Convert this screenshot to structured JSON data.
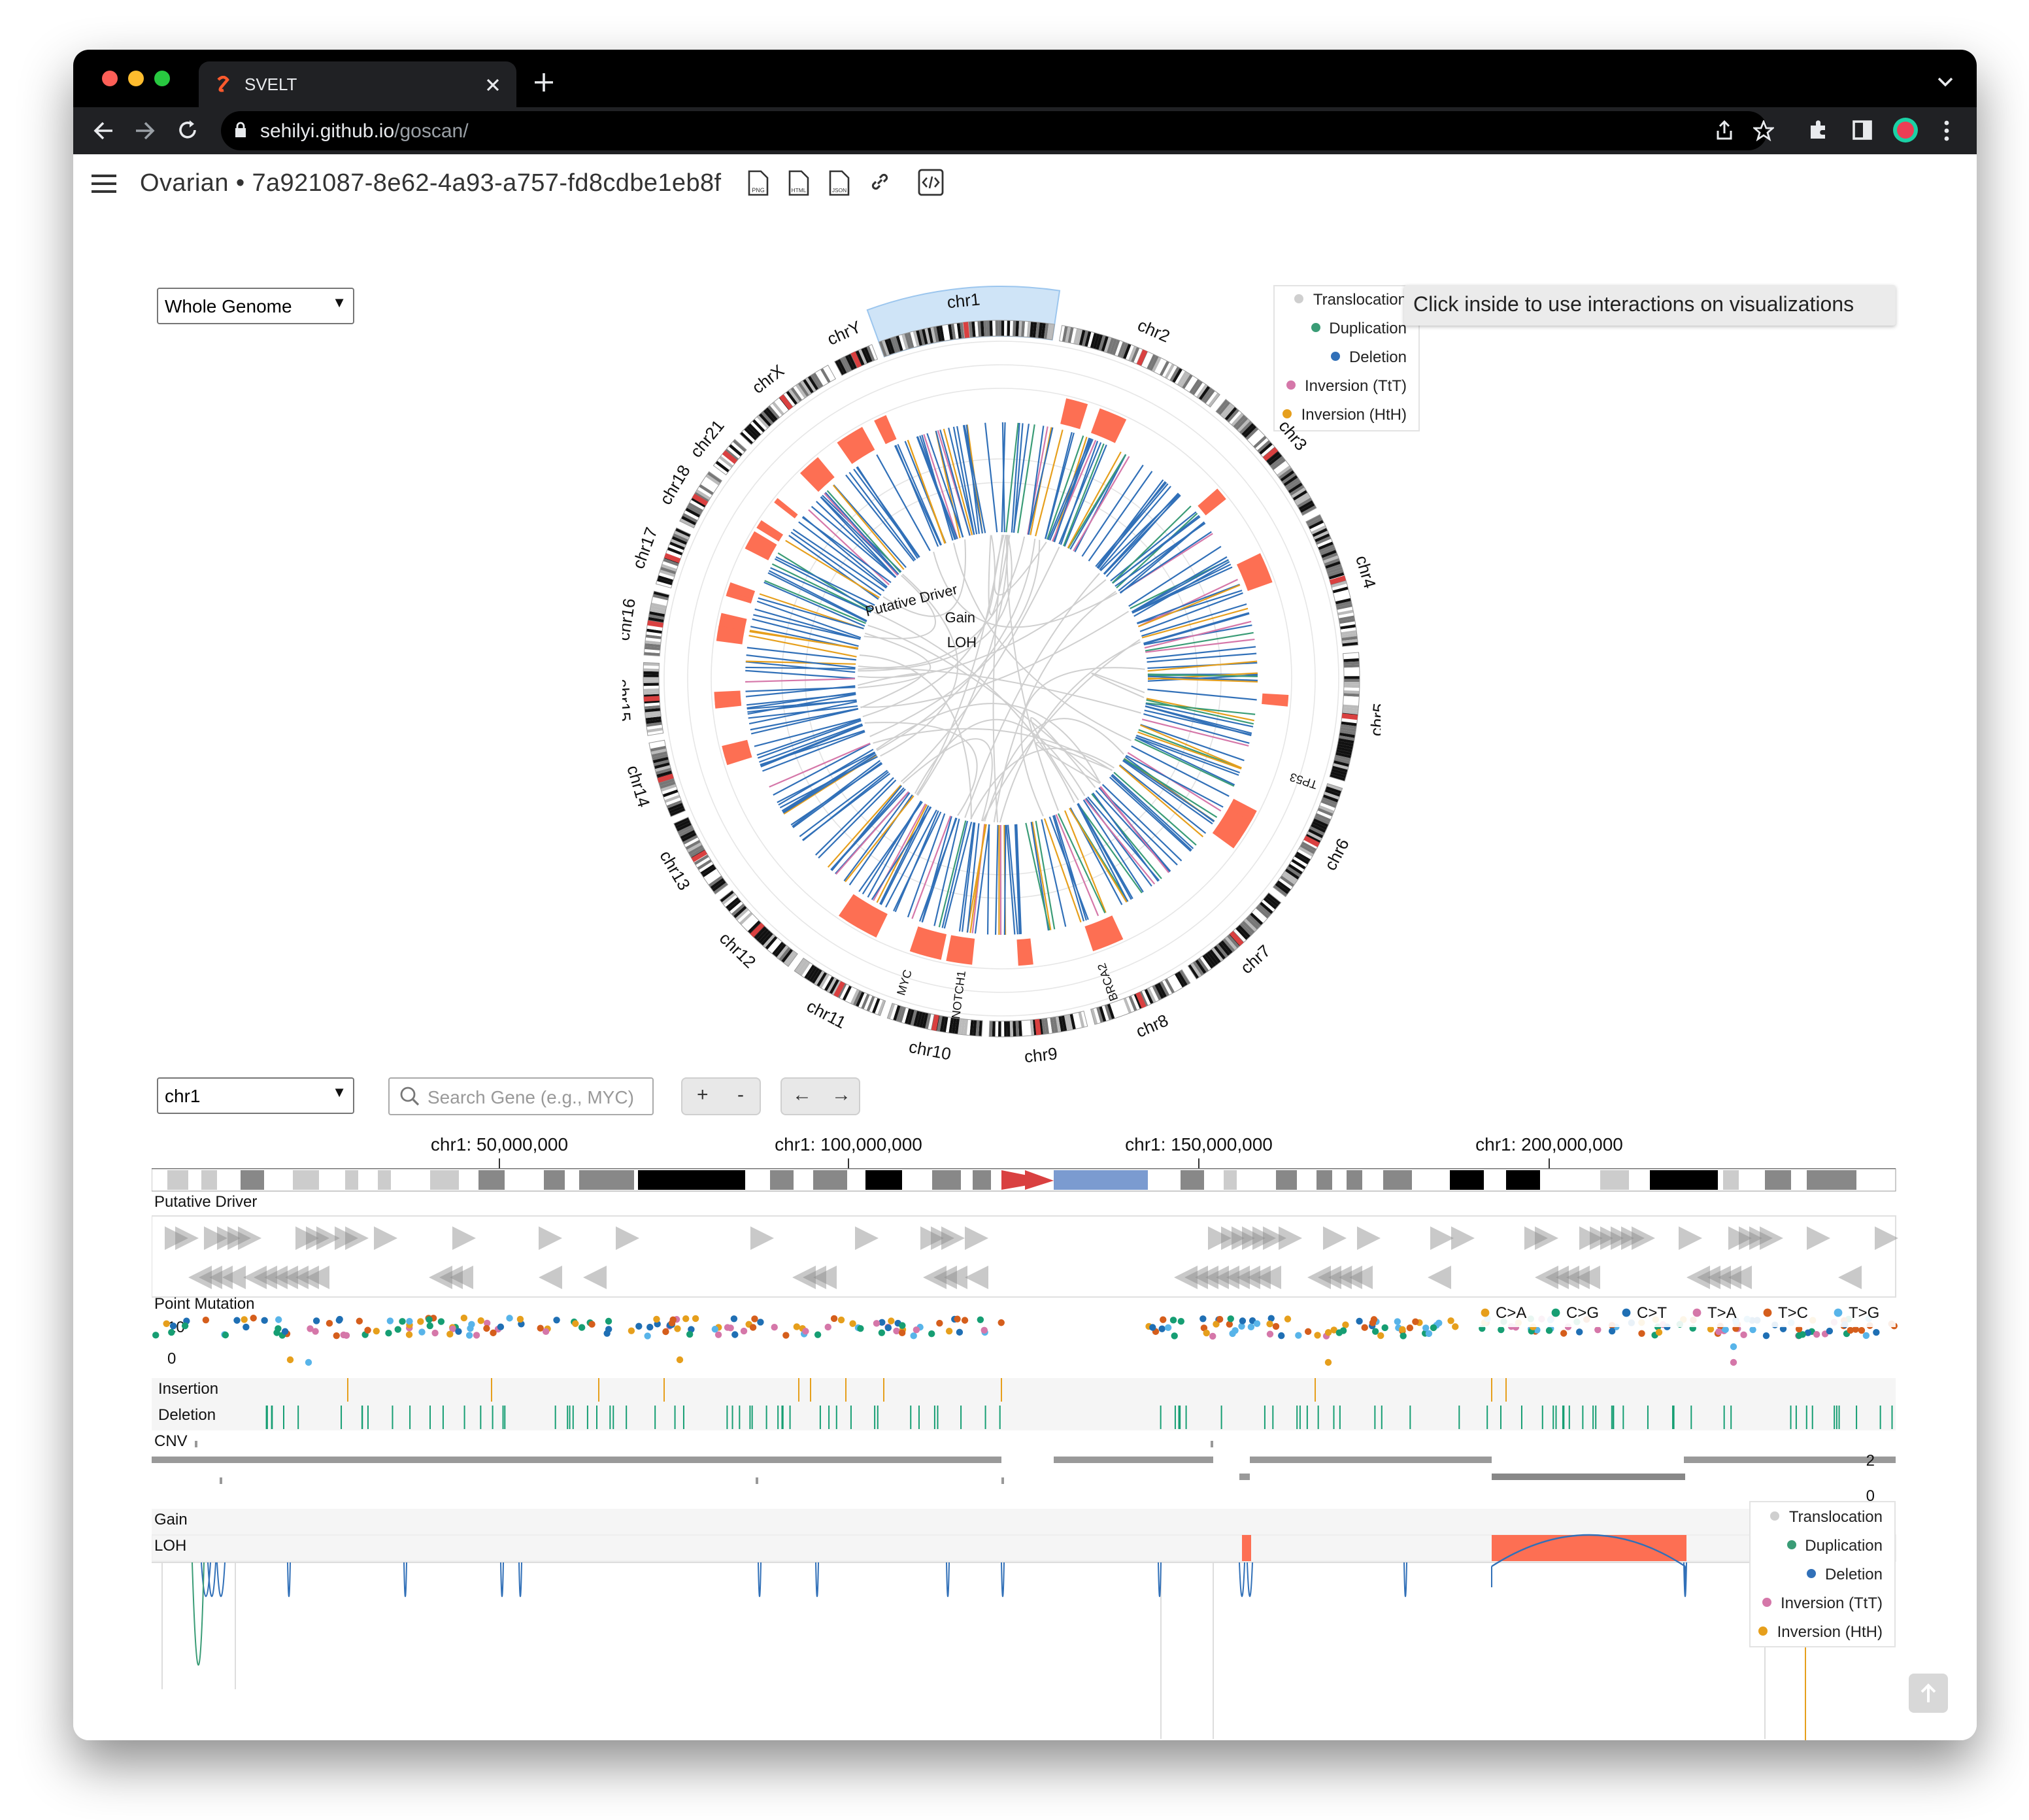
{
  "browser": {
    "tab_title": "SVELT",
    "url_host": "sehilyi.github.io",
    "url_path": "/goscan/"
  },
  "header": {
    "title": "Ovarian • 7a921087-8e62-4a93-a757-fd8cdbe1eb8f",
    "icons": [
      "png-icon",
      "html-icon",
      "json-icon",
      "link-icon",
      "code-embed-icon"
    ]
  },
  "controls": {
    "genome_select": "Whole Genome",
    "chrom_select": "chr1",
    "search_placeholder": "Search Gene (e.g., MYC)",
    "zoom_in": "+",
    "zoom_out": "-",
    "pan_left": "←",
    "pan_right": "→"
  },
  "tooltip": "Click inside to use interactions on visualizations",
  "sv_legend": [
    {
      "label": "Translocation",
      "color": "#cfcfcf"
    },
    {
      "label": "Duplication",
      "color": "#3a9c76"
    },
    {
      "label": "Deletion",
      "color": "#3170b8"
    },
    {
      "label": "Inversion (TtT)",
      "color": "#d577a9"
    },
    {
      "label": "Inversion (HtH)",
      "color": "#e69f1c"
    }
  ],
  "mutation_legend": [
    {
      "label": "C>A",
      "color": "#e69f1c"
    },
    {
      "label": "C>G",
      "color": "#169e73"
    },
    {
      "label": "C>T",
      "color": "#1f6fb4"
    },
    {
      "label": "T>A",
      "color": "#d577a9"
    },
    {
      "label": "T>C",
      "color": "#d55e1c"
    },
    {
      "label": "T>G",
      "color": "#58b4e9"
    }
  ],
  "circos": {
    "chromosomes": [
      "chr1",
      "chr2",
      "chr3",
      "chr4",
      "chr5",
      "chr6",
      "chr7",
      "chr8",
      "chr9",
      "chr10",
      "chr11",
      "chr12",
      "chr13",
      "chr14",
      "chr15",
      "chr16",
      "chr17",
      "chr18",
      "chr21",
      "chrX",
      "chrY"
    ],
    "track_labels": [
      "Putative Driver",
      "Gain",
      "LOH"
    ],
    "genes": [
      "TP53",
      "BRCA2",
      "NOTCH1",
      "MYC"
    ]
  },
  "linear": {
    "axis_ticks": [
      "chr1: 50,000,000",
      "chr1: 100,000,000",
      "chr1: 150,000,000",
      "chr1: 200,000,000"
    ],
    "tracks": {
      "putative_driver": "Putative Driver",
      "point_mutation": "Point Mutation",
      "insertion": "Insertion",
      "deletion": "Deletion",
      "cnv": "CNV",
      "gain": "Gain",
      "loh": "LOH"
    },
    "mutation_axis": [
      "10",
      "0"
    ],
    "cnv_axis": [
      "2",
      "0"
    ]
  }
}
